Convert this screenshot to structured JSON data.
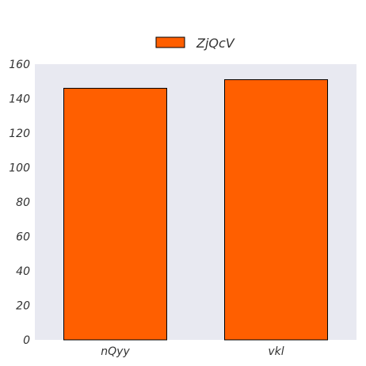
{
  "chart_data": {
    "type": "bar",
    "title": "",
    "xlabel": "",
    "ylabel": "",
    "categories": [
      "nQyy",
      "vkl"
    ],
    "series": [
      {
        "name": "ZjQcV",
        "values": [
          146,
          151
        ],
        "color": "#ff5f00"
      }
    ],
    "ylim": [
      0,
      160
    ],
    "yticks": [
      0,
      20,
      40,
      60,
      80,
      100,
      120,
      140,
      160
    ],
    "grid": false,
    "legend_position": "top-center",
    "plot_background": "#e8e9f1"
  }
}
